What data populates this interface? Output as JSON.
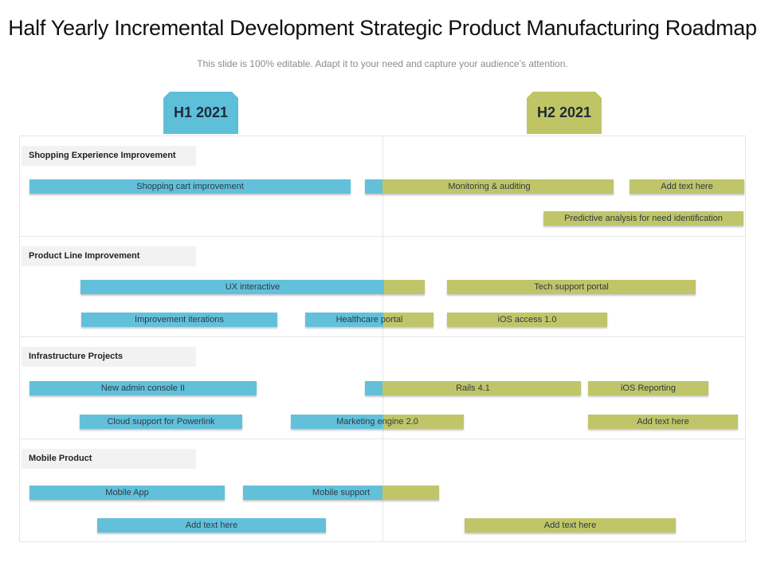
{
  "title": "Half Yearly Incremental Development Strategic Product Manufacturing Roadmap",
  "subtitle": "This slide is 100% editable. Adapt it to your need and capture your audience’s attention.",
  "periods": {
    "h1": "H1 2021",
    "h2": "H2 2021"
  },
  "colors": {
    "h1": "#5ebfd9",
    "h2": "#bfc564"
  },
  "sections": [
    {
      "label": "Shopping Experience Improvement"
    },
    {
      "label": "Product Line Improvement"
    },
    {
      "label": "Infrastructure Projects"
    },
    {
      "label": "Mobile Product"
    }
  ],
  "bars": {
    "shopping_cart": "Shopping cart improvement",
    "monitoring": "Monitoring & auditing",
    "add_text_1": "Add text here",
    "predictive": "Predictive analysis  for need identification",
    "ux": "UX interactive",
    "tech_support": "Tech support portal",
    "iterations": "Improvement iterations",
    "healthcare": "Healthcare  portal",
    "ios_access": "iOS access  1.0",
    "admin_console": "New admin  console II",
    "rails": "Rails  4.1",
    "ios_reporting": "iOS Reporting",
    "cloud": "Cloud support for Powerlink",
    "marketing": "Marketing  engine 2.0",
    "add_text_2": "Add text here",
    "mobile_app": "Mobile App",
    "mobile_support": "Mobile support",
    "add_text_3": "Add text here",
    "add_text_4": "Add text here"
  }
}
